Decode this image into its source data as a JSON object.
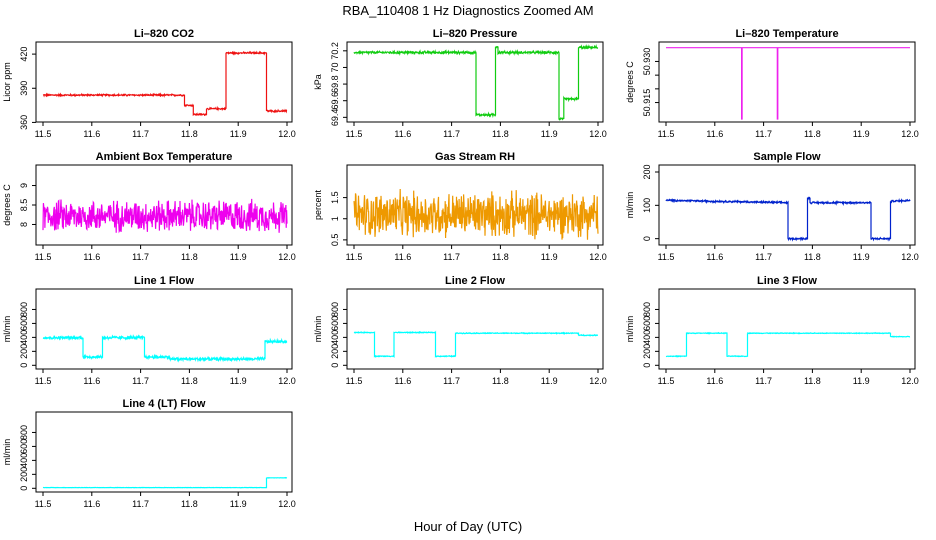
{
  "figure_title": "RBA_110408  1 Hz Diagnostics Zoomed AM",
  "xlabel": "Hour of Day (UTC)",
  "chart_data": [
    {
      "type": "line",
      "title": "Li–820 CO2",
      "ylabel": "Licor ppm",
      "color": "#ee1111",
      "xlim": [
        11.5,
        12.0
      ],
      "ylim": [
        363,
        428
      ],
      "xticks": [
        "11.5",
        "11.6",
        "11.7",
        "11.8",
        "11.9",
        "12.0"
      ],
      "yticks": [
        360,
        390,
        420
      ],
      "noise": 0.6,
      "x": [
        11.5,
        11.79,
        11.79,
        11.808,
        11.808,
        11.835,
        11.835,
        11.875,
        11.875,
        11.958,
        11.958,
        12.0
      ],
      "y": [
        384,
        384,
        375,
        375,
        367,
        367,
        372,
        372,
        421,
        421,
        370,
        370
      ]
    },
    {
      "type": "line",
      "title": "Li–820 Pressure",
      "ylabel": "kPa",
      "color": "#11cc11",
      "xlim": [
        11.5,
        12.0
      ],
      "ylim": [
        69.38,
        70.27
      ],
      "xticks": [
        "11.5",
        "11.6",
        "11.7",
        "11.8",
        "11.9",
        "12.0"
      ],
      "yticks": [
        69.4,
        69.6,
        69.8,
        70.0,
        70.2
      ],
      "noise": 0.012,
      "x": [
        11.5,
        11.75,
        11.75,
        11.79,
        11.79,
        11.795,
        11.795,
        11.92,
        11.92,
        11.93,
        11.93,
        11.96,
        11.96,
        12.0
      ],
      "y": [
        70.18,
        70.18,
        69.43,
        69.43,
        70.25,
        70.25,
        70.18,
        70.18,
        69.38,
        69.38,
        69.62,
        69.62,
        70.24,
        70.24
      ]
    },
    {
      "type": "line",
      "title": "Li–820 Temperature",
      "ylabel": "degrees C",
      "color": "#ee22ee",
      "xlim": [
        11.5,
        12.0
      ],
      "ylim": [
        50.909,
        50.936
      ],
      "xticks": [
        "11.5",
        "11.6",
        "11.7",
        "11.8",
        "11.9",
        "12.0"
      ],
      "yticks": [
        50.915,
        50.92,
        50.925,
        50.93
      ],
      "ytick_labels": [
        "50.915",
        "",
        "",
        "50.930"
      ],
      "noise": 0,
      "x": [
        11.5,
        11.655,
        11.655,
        11.656,
        11.656,
        11.728,
        11.728,
        11.729,
        11.729,
        12.0
      ],
      "y": [
        50.935,
        50.935,
        50.909,
        50.909,
        50.935,
        50.935,
        50.909,
        50.909,
        50.935,
        50.935
      ]
    },
    {
      "type": "line",
      "title": "Ambient Box Temperature",
      "ylabel": "degrees C",
      "color": "#ee00ee",
      "xlim": [
        11.5,
        12.0
      ],
      "ylim": [
        7.55,
        9.45
      ],
      "xticks": [
        "11.5",
        "11.6",
        "11.7",
        "11.8",
        "11.9",
        "12.0"
      ],
      "yticks": [
        8.0,
        8.5,
        9.0
      ],
      "noise": 0.32,
      "x": [
        11.5,
        12.0
      ],
      "y": [
        8.22,
        8.22
      ]
    },
    {
      "type": "line",
      "title": "Gas Stream RH",
      "ylabel": "percent",
      "color": "#ee9900",
      "xlim": [
        11.5,
        12.0
      ],
      "ylim": [
        0.45,
        2.2
      ],
      "xticks": [
        "11.5",
        "11.6",
        "11.7",
        "11.8",
        "11.9",
        "12.0"
      ],
      "yticks": [
        0.5,
        1.0,
        1.5
      ],
      "noise": 0.42,
      "x": [
        11.5,
        12.0
      ],
      "y": [
        1.1,
        1.1
      ]
    },
    {
      "type": "line",
      "title": "Sample Flow",
      "ylabel": "ml/min",
      "color": "#0022cc",
      "xlim": [
        11.5,
        12.0
      ],
      "ylim": [
        -10,
        212
      ],
      "xticks": [
        "11.5",
        "11.6",
        "11.7",
        "11.8",
        "11.9",
        "12.0"
      ],
      "yticks": [
        0,
        100,
        200
      ],
      "noise": 2.2,
      "x": [
        11.5,
        11.75,
        11.75,
        11.79,
        11.79,
        11.795,
        11.795,
        11.92,
        11.92,
        11.96,
        11.96,
        12.0
      ],
      "y": [
        115,
        108,
        0,
        0,
        122,
        122,
        108,
        108,
        0,
        0,
        112,
        115
      ]
    },
    {
      "type": "line",
      "title": "Line 1 Flow",
      "ylabel": "ml/min",
      "color": "#00ffff",
      "xlim": [
        11.5,
        12.0
      ],
      "ylim": [
        -10,
        1050
      ],
      "xticks": [
        "11.5",
        "11.6",
        "11.7",
        "11.8",
        "11.9",
        "12.0"
      ],
      "yticks": [
        0,
        200,
        400,
        600,
        800
      ],
      "noise": 18,
      "x": [
        11.5,
        11.582,
        11.582,
        11.622,
        11.622,
        11.708,
        11.708,
        11.76,
        11.76,
        11.955,
        11.955,
        12.0
      ],
      "y": [
        395,
        395,
        120,
        120,
        395,
        395,
        120,
        120,
        90,
        90,
        340,
        340
      ]
    },
    {
      "type": "line",
      "title": "Line 2 Flow",
      "ylabel": "ml/min",
      "color": "#00ffff",
      "xlim": [
        11.5,
        12.0
      ],
      "ylim": [
        -10,
        1050
      ],
      "xticks": [
        "11.5",
        "11.6",
        "11.7",
        "11.8",
        "11.9",
        "12.0"
      ],
      "yticks": [
        0,
        200,
        400,
        600,
        800
      ],
      "noise": 5,
      "x": [
        11.5,
        11.542,
        11.542,
        11.582,
        11.582,
        11.667,
        11.667,
        11.708,
        11.708,
        11.96,
        11.96,
        12.0
      ],
      "y": [
        470,
        470,
        130,
        130,
        470,
        470,
        130,
        130,
        460,
        460,
        430,
        430
      ]
    },
    {
      "type": "line",
      "title": "Line 3 Flow",
      "ylabel": "ml/min",
      "color": "#00ffff",
      "xlim": [
        11.5,
        12.0
      ],
      "ylim": [
        -10,
        1050
      ],
      "xticks": [
        "11.5",
        "11.6",
        "11.7",
        "11.8",
        "11.9",
        "12.0"
      ],
      "yticks": [
        0,
        200,
        400,
        600,
        800
      ],
      "noise": 4,
      "x": [
        11.5,
        11.542,
        11.542,
        11.625,
        11.625,
        11.667,
        11.667,
        11.96,
        11.96,
        12.0
      ],
      "y": [
        130,
        130,
        460,
        460,
        130,
        130,
        460,
        460,
        410,
        410
      ]
    },
    {
      "type": "line",
      "title": "Line 4 (LT) Flow",
      "ylabel": "ml/min",
      "color": "#00ffff",
      "xlim": [
        11.5,
        12.0
      ],
      "ylim": [
        -10,
        1050
      ],
      "xticks": [
        "11.5",
        "11.6",
        "11.7",
        "11.8",
        "11.9",
        "12.0"
      ],
      "yticks": [
        0,
        200,
        400,
        600,
        800
      ],
      "noise": 2,
      "x": [
        11.5,
        11.958,
        11.958,
        12.0
      ],
      "y": [
        10,
        10,
        150,
        150
      ]
    }
  ]
}
